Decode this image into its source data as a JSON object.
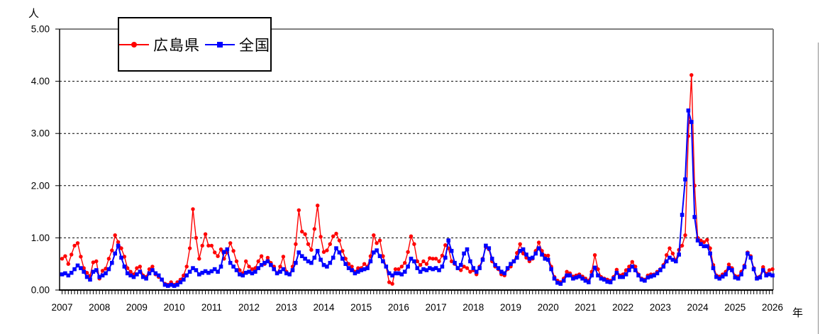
{
  "chart_data": {
    "type": "line",
    "title": "",
    "y_unit": "人",
    "x_unit": "年",
    "ylim": [
      0,
      5
    ],
    "yticks": [
      "0.00",
      "1.00",
      "2.00",
      "3.00",
      "4.00",
      "5.00"
    ],
    "years": [
      "2007",
      "2008",
      "2009",
      "2010",
      "2011",
      "2012",
      "2013",
      "2014",
      "2015",
      "2016",
      "2017",
      "2018",
      "2019",
      "2020",
      "2021",
      "2022",
      "2023",
      "2024",
      "2025",
      "2026"
    ],
    "x_frequency": "monthly",
    "x_start": "2007-01",
    "x_end": "2026-01",
    "grid": "horizontal dashed lines at every 1.00",
    "legend_position": "top-left inside plot",
    "axis_color": "#000000",
    "border_color": "#808080",
    "series": [
      {
        "name": "広島県",
        "color": "#ff0000",
        "marker": "circle",
        "values": [
          0.6,
          0.65,
          0.5,
          0.68,
          0.85,
          0.9,
          0.64,
          0.42,
          0.33,
          0.27,
          0.53,
          0.55,
          0.22,
          0.37,
          0.41,
          0.6,
          0.76,
          1.05,
          0.92,
          0.8,
          0.64,
          0.42,
          0.35,
          0.3,
          0.42,
          0.45,
          0.28,
          0.25,
          0.4,
          0.45,
          0.3,
          0.25,
          0.2,
          0.12,
          0.1,
          0.15,
          0.1,
          0.15,
          0.2,
          0.28,
          0.45,
          0.8,
          1.55,
          1.0,
          0.6,
          0.85,
          1.07,
          0.85,
          0.85,
          0.72,
          0.65,
          0.78,
          0.6,
          0.72,
          0.9,
          0.75,
          0.55,
          0.38,
          0.32,
          0.55,
          0.45,
          0.4,
          0.42,
          0.55,
          0.65,
          0.5,
          0.62,
          0.52,
          0.45,
          0.32,
          0.45,
          0.64,
          0.35,
          0.3,
          0.45,
          0.88,
          1.53,
          1.12,
          1.07,
          0.88,
          0.77,
          1.17,
          1.62,
          1.02,
          0.73,
          0.76,
          0.88,
          1.03,
          1.08,
          0.95,
          0.75,
          0.6,
          0.5,
          0.45,
          0.35,
          0.42,
          0.42,
          0.5,
          0.45,
          0.65,
          1.05,
          0.9,
          0.95,
          0.65,
          0.45,
          0.15,
          0.12,
          0.4,
          0.4,
          0.45,
          0.52,
          0.73,
          1.03,
          0.88,
          0.55,
          0.48,
          0.55,
          0.5,
          0.61,
          0.6,
          0.6,
          0.55,
          0.66,
          0.86,
          0.8,
          0.55,
          0.5,
          0.42,
          0.38,
          0.45,
          0.42,
          0.35,
          0.38,
          0.3,
          0.45,
          0.6,
          0.82,
          0.78,
          0.55,
          0.45,
          0.4,
          0.3,
          0.28,
          0.4,
          0.45,
          0.55,
          0.71,
          0.88,
          0.7,
          0.62,
          0.55,
          0.6,
          0.75,
          0.91,
          0.75,
          0.66,
          0.66,
          0.45,
          0.25,
          0.18,
          0.15,
          0.22,
          0.35,
          0.32,
          0.26,
          0.28,
          0.3,
          0.26,
          0.22,
          0.18,
          0.35,
          0.67,
          0.4,
          0.25,
          0.22,
          0.2,
          0.18,
          0.25,
          0.39,
          0.28,
          0.3,
          0.38,
          0.45,
          0.54,
          0.45,
          0.3,
          0.22,
          0.2,
          0.28,
          0.3,
          0.3,
          0.35,
          0.4,
          0.48,
          0.67,
          0.8,
          0.7,
          0.57,
          0.77,
          0.85,
          1.05,
          2.95,
          4.12,
          2.0,
          1.0,
          0.95,
          0.92,
          0.96,
          0.8,
          0.48,
          0.28,
          0.26,
          0.3,
          0.35,
          0.49,
          0.42,
          0.27,
          0.26,
          0.35,
          0.47,
          0.72,
          0.65,
          0.42,
          0.24,
          0.26,
          0.44,
          0.31,
          0.38,
          0.4
        ]
      },
      {
        "name": "全国",
        "color": "#0000ff",
        "marker": "square",
        "values": [
          0.3,
          0.32,
          0.28,
          0.33,
          0.4,
          0.47,
          0.42,
          0.35,
          0.25,
          0.2,
          0.35,
          0.38,
          0.25,
          0.28,
          0.32,
          0.4,
          0.52,
          0.7,
          0.85,
          0.62,
          0.45,
          0.32,
          0.28,
          0.25,
          0.3,
          0.35,
          0.25,
          0.22,
          0.32,
          0.38,
          0.32,
          0.28,
          0.2,
          0.1,
          0.08,
          0.1,
          0.08,
          0.1,
          0.15,
          0.2,
          0.28,
          0.35,
          0.42,
          0.38,
          0.3,
          0.33,
          0.36,
          0.33,
          0.36,
          0.4,
          0.35,
          0.45,
          0.73,
          0.78,
          0.52,
          0.45,
          0.38,
          0.3,
          0.28,
          0.33,
          0.35,
          0.32,
          0.35,
          0.42,
          0.48,
          0.52,
          0.55,
          0.48,
          0.4,
          0.32,
          0.35,
          0.4,
          0.32,
          0.3,
          0.38,
          0.52,
          0.72,
          0.65,
          0.6,
          0.55,
          0.52,
          0.62,
          0.75,
          0.58,
          0.48,
          0.45,
          0.52,
          0.62,
          0.8,
          0.72,
          0.6,
          0.5,
          0.42,
          0.38,
          0.32,
          0.35,
          0.38,
          0.4,
          0.42,
          0.55,
          0.72,
          0.76,
          0.65,
          0.55,
          0.45,
          0.32,
          0.28,
          0.32,
          0.32,
          0.3,
          0.35,
          0.45,
          0.6,
          0.55,
          0.42,
          0.35,
          0.4,
          0.38,
          0.42,
          0.4,
          0.42,
          0.38,
          0.45,
          0.62,
          0.95,
          0.75,
          0.52,
          0.42,
          0.48,
          0.7,
          0.78,
          0.55,
          0.42,
          0.35,
          0.42,
          0.58,
          0.85,
          0.8,
          0.6,
          0.48,
          0.42,
          0.35,
          0.32,
          0.42,
          0.5,
          0.55,
          0.62,
          0.75,
          0.78,
          0.68,
          0.6,
          0.62,
          0.7,
          0.8,
          0.68,
          0.6,
          0.58,
          0.4,
          0.22,
          0.14,
          0.12,
          0.18,
          0.28,
          0.28,
          0.22,
          0.24,
          0.26,
          0.22,
          0.18,
          0.15,
          0.28,
          0.43,
          0.28,
          0.22,
          0.2,
          0.16,
          0.15,
          0.22,
          0.33,
          0.25,
          0.25,
          0.3,
          0.38,
          0.45,
          0.38,
          0.28,
          0.2,
          0.18,
          0.24,
          0.26,
          0.28,
          0.32,
          0.38,
          0.45,
          0.55,
          0.62,
          0.58,
          0.55,
          0.68,
          1.44,
          2.12,
          3.44,
          3.22,
          1.4,
          0.95,
          0.88,
          0.84,
          0.84,
          0.7,
          0.42,
          0.25,
          0.22,
          0.26,
          0.3,
          0.42,
          0.38,
          0.24,
          0.22,
          0.3,
          0.44,
          0.7,
          0.62,
          0.4,
          0.22,
          0.24,
          0.38,
          0.28,
          0.3,
          0.28
        ]
      }
    ]
  },
  "legend": {
    "items": [
      {
        "label": "広島県"
      },
      {
        "label": "全国"
      }
    ]
  }
}
